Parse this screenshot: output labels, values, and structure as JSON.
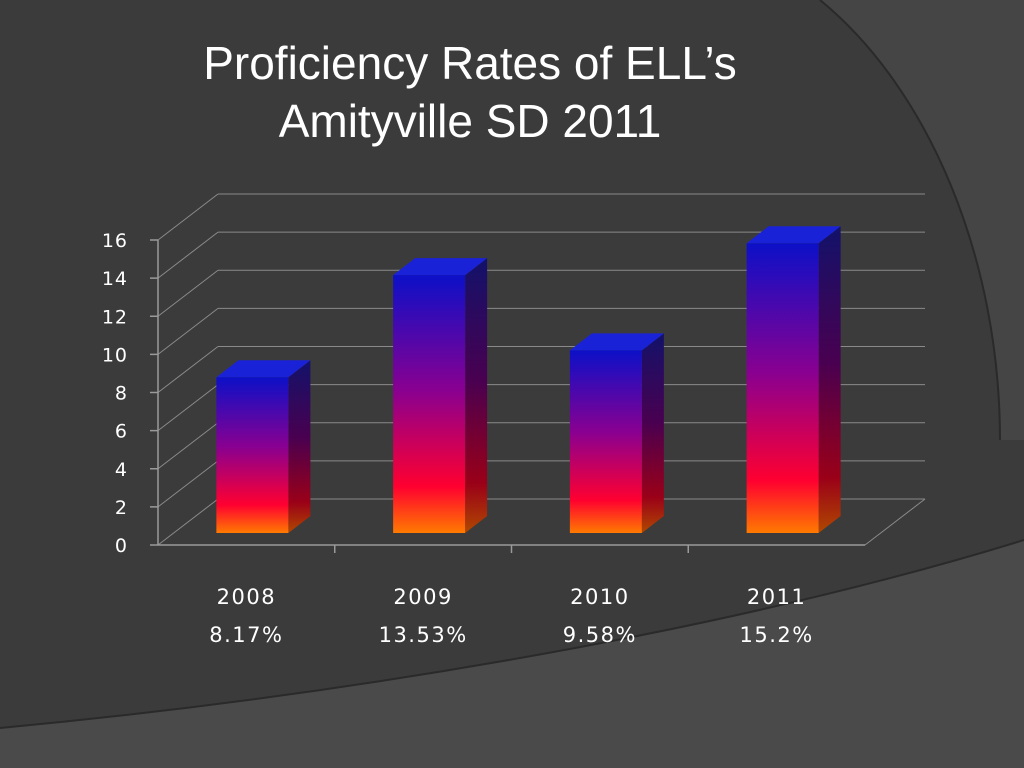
{
  "slide": {
    "title_line1": "Proficiency Rates of ELL’s",
    "title_line2": "Amityville SD 2011"
  },
  "chart_data": {
    "type": "bar",
    "style": "3d-column",
    "categories": [
      "2008",
      "2009",
      "2010",
      "2011"
    ],
    "category_sublabels": [
      "8.17%",
      "13.53%",
      "9.58%",
      "15.2%"
    ],
    "values": [
      8.17,
      13.53,
      9.58,
      15.2
    ],
    "yticks": [
      0,
      2,
      4,
      6,
      8,
      10,
      12,
      14,
      16
    ],
    "ylim": [
      0,
      16
    ],
    "grid": true,
    "legend": "none",
    "bar_gradient": [
      "#0a0acc",
      "#7a0099",
      "#ff0033",
      "#ff6a00"
    ],
    "background_color": "#3b3b3b"
  }
}
